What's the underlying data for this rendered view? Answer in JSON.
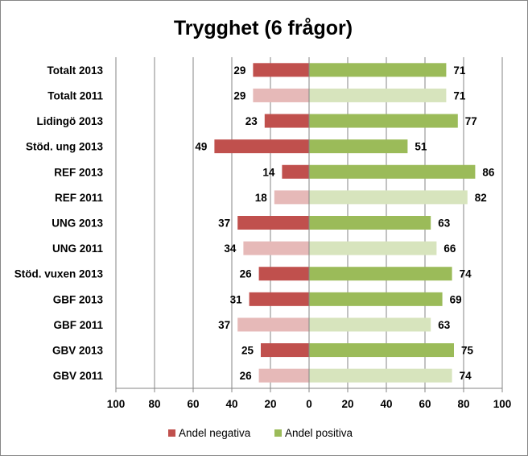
{
  "chart_data": {
    "type": "bar",
    "orientation": "horizontal-diverging",
    "title": "Trygghet (6 frågor)",
    "categories": [
      "Totalt 2013",
      "Totalt 2011",
      "Lidingö 2013",
      "Stöd. ung 2013",
      "REF 2013",
      "REF 2011",
      "UNG 2013",
      "UNG 2011",
      "Stöd. vuxen 2013",
      "GBF 2013",
      "GBF 2011",
      "GBV 2013",
      "GBV 2011"
    ],
    "series": [
      {
        "name": "Andel negativa",
        "values": [
          29,
          29,
          23,
          49,
          14,
          18,
          37,
          34,
          26,
          31,
          37,
          25,
          26
        ],
        "color": "#c0504d",
        "color_light": "#e6b9b8"
      },
      {
        "name": "Andel positiva",
        "values": [
          71,
          71,
          77,
          51,
          86,
          82,
          63,
          66,
          74,
          69,
          63,
          75,
          74
        ],
        "color": "#9bbb59",
        "color_light": "#d7e4bd"
      }
    ],
    "light_rows": [
      false,
      true,
      false,
      false,
      false,
      true,
      false,
      true,
      false,
      false,
      true,
      false,
      true
    ],
    "xlim": [
      -100,
      100
    ],
    "xticks": [
      -100,
      -80,
      -60,
      -40,
      -20,
      0,
      20,
      40,
      60,
      80,
      100
    ],
    "xtick_labels": [
      "100",
      "80",
      "60",
      "40",
      "20",
      "0",
      "20",
      "40",
      "60",
      "80",
      "100"
    ],
    "grid": true,
    "legend_position": "bottom"
  }
}
